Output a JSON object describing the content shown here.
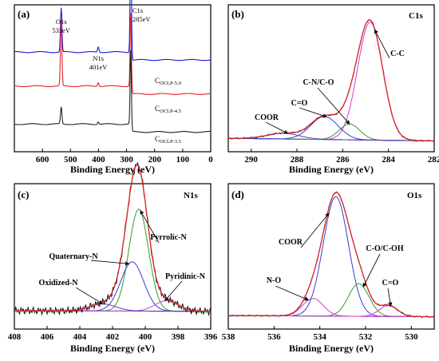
{
  "chart_data": [
    {
      "panel": "(a)",
      "type": "line",
      "xlabel": "Binding Energy (eV)",
      "ylabel": "",
      "xlim": [
        700,
        0
      ],
      "x_reversed": true,
      "xticks": [
        600,
        500,
        400,
        300,
        200,
        100,
        0
      ],
      "peak_labels": [
        {
          "lines": [
            "O1s",
            "533eV"
          ],
          "x": 533
        },
        {
          "lines": [
            "N1s",
            "401eV"
          ],
          "x": 401
        },
        {
          "lines": [
            "C1s",
            "285eV"
          ],
          "x": 285
        }
      ],
      "series": [
        {
          "name_main": "C",
          "name_sub": "OCLP-5.0",
          "color": "#1a1ae6",
          "baseline": 0.68,
          "peaks": [
            [
              533,
              0.34
            ],
            [
              401,
              0.04
            ],
            [
              285,
              1.0
            ]
          ]
        },
        {
          "name_main": "C",
          "name_sub": "OCLP-4.5",
          "color": "#e0262a",
          "baseline": 0.42,
          "peaks": [
            [
              533,
              0.52
            ],
            [
              401,
              0.03
            ],
            [
              285,
              0.62
            ]
          ]
        },
        {
          "name_main": "C",
          "name_sub": "OCLP-3.5",
          "color": "#222222",
          "baseline": 0.13,
          "peaks": [
            [
              533,
              0.13
            ],
            [
              401,
              0.02
            ],
            [
              285,
              0.62
            ]
          ]
        }
      ]
    },
    {
      "panel": "(b)",
      "type": "line",
      "title": "C1s",
      "xlabel": "Binding Energy (eV)",
      "xlim": [
        291,
        282
      ],
      "x_reversed": true,
      "xticks": [
        290,
        288,
        286,
        284,
        282
      ],
      "components": [
        {
          "label": "C-C",
          "center": 284.8,
          "height": 0.82,
          "width": 0.55,
          "color": "#d63ad6"
        },
        {
          "label": "C-N/C-O",
          "center": 285.7,
          "height": 0.11,
          "width": 0.45,
          "color": "#2ca02c"
        },
        {
          "label": "C=O",
          "center": 286.8,
          "height": 0.16,
          "width": 0.6,
          "color": "#3a3ad6"
        },
        {
          "label": "COOR",
          "center": 288.6,
          "height": 0.04,
          "width": 0.7,
          "color": "#5b3fa6"
        }
      ]
    },
    {
      "panel": "(c)",
      "type": "line",
      "title": "N1s",
      "xlabel": "Binding Energy (eV)",
      "xlim": [
        408,
        396
      ],
      "x_reversed": true,
      "xticks": [
        408,
        406,
        404,
        402,
        400,
        398,
        396
      ],
      "components": [
        {
          "label": "Pyrrolic-N",
          "center": 400.4,
          "height": 0.58,
          "width": 0.6,
          "color": "#2ca02c"
        },
        {
          "label": "Quaternary-N",
          "center": 400.8,
          "height": 0.28,
          "width": 0.7,
          "color": "#3a3ad6"
        },
        {
          "label": "Pyridinic-N",
          "center": 398.7,
          "height": 0.06,
          "width": 0.7,
          "color": "#d63ad6"
        },
        {
          "label": "Oxidized-N",
          "center": 402.6,
          "height": 0.04,
          "width": 0.8,
          "color": "#5b3fa6"
        }
      ]
    },
    {
      "panel": "(d)",
      "type": "line",
      "title": "O1s",
      "xlabel": "Binding Energy (eV)",
      "xlim": [
        538,
        529
      ],
      "x_reversed": true,
      "xticks": [
        538,
        536,
        534,
        532,
        530
      ],
      "components": [
        {
          "label": "COOR",
          "center": 533.3,
          "height": 0.88,
          "width": 0.55,
          "color": "#3a3ad6"
        },
        {
          "label": "C-O/C-OH",
          "center": 532.3,
          "height": 0.24,
          "width": 0.45,
          "color": "#2ca02c"
        },
        {
          "label": "N-O",
          "center": 534.3,
          "height": 0.13,
          "width": 0.45,
          "color": "#d63ad6"
        },
        {
          "label": "C=O",
          "center": 531.0,
          "height": 0.08,
          "width": 0.4,
          "color": "#d63ad6"
        }
      ]
    }
  ]
}
